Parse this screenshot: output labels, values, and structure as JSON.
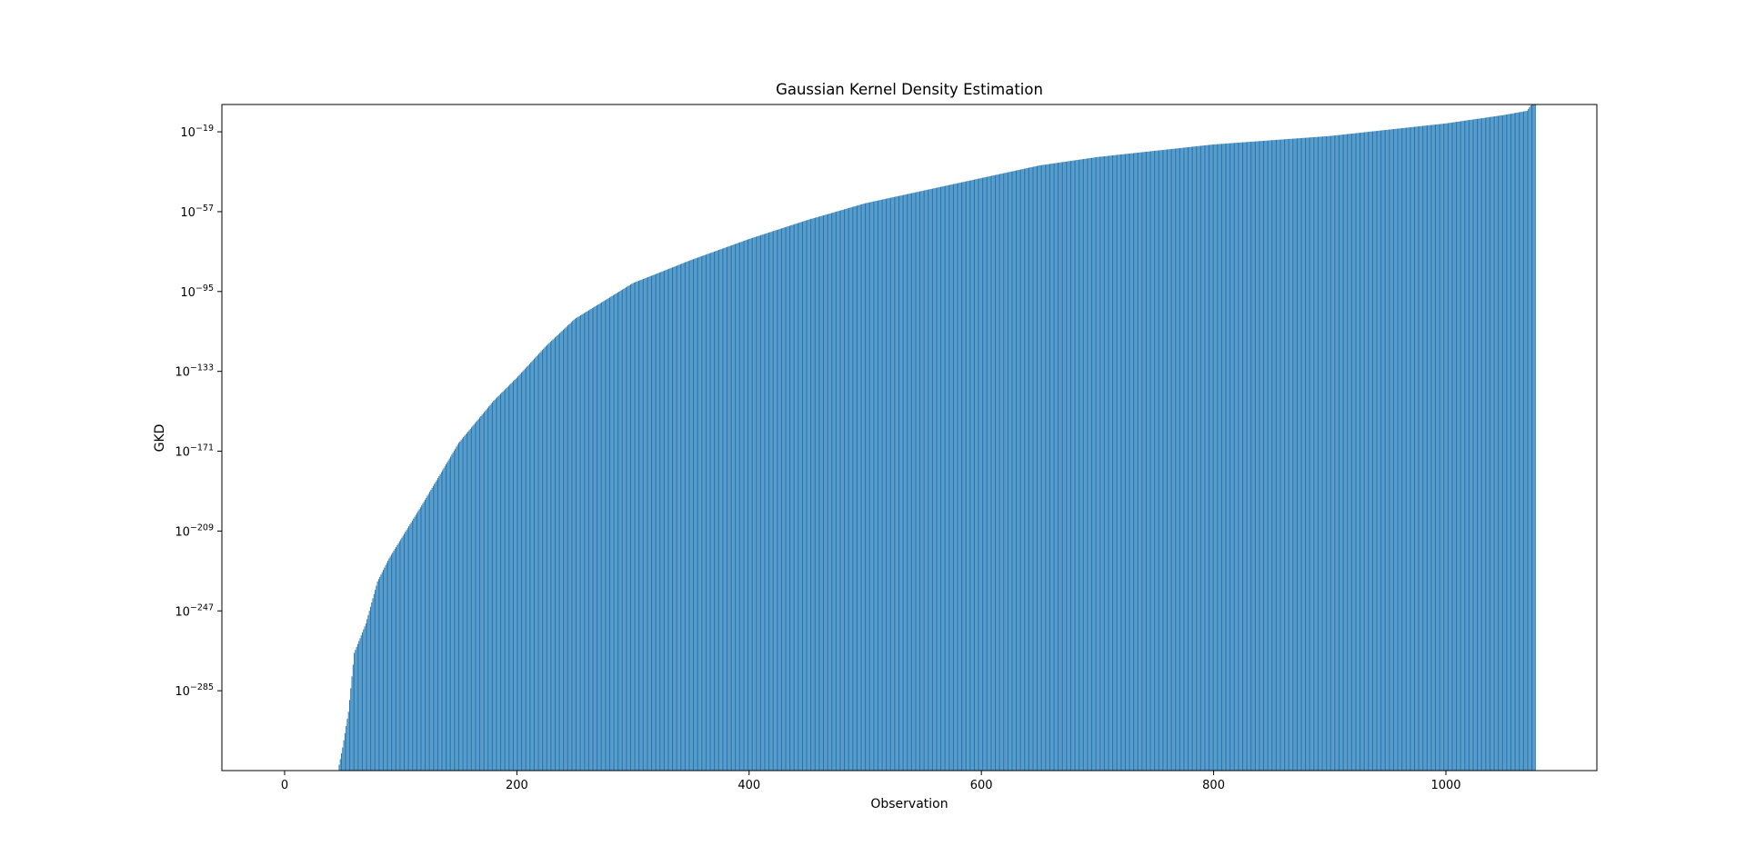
{
  "chart_data": {
    "type": "bar",
    "title": "Gaussian Kernel Density Estimation",
    "xlabel": "Observation",
    "ylabel": "GKD",
    "x_scale": "linear",
    "y_scale": "log",
    "xlim": [
      -54,
      1130
    ],
    "ylim_log10": [
      -323,
      -6
    ],
    "grid": false,
    "legend": "none",
    "bar_color": "#1f77b4",
    "x_ticks": [
      {
        "value": 0,
        "label": "0"
      },
      {
        "value": 200,
        "label": "200"
      },
      {
        "value": 400,
        "label": "400"
      },
      {
        "value": 600,
        "label": "600"
      },
      {
        "value": 800,
        "label": "800"
      },
      {
        "value": 1000,
        "label": "1000"
      }
    ],
    "y_ticks": [
      {
        "exponent": -19,
        "base": "10",
        "sup": "−19"
      },
      {
        "exponent": -57,
        "base": "10",
        "sup": "−57"
      },
      {
        "exponent": -95,
        "base": "10",
        "sup": "−95"
      },
      {
        "exponent": -133,
        "base": "10",
        "sup": "−133"
      },
      {
        "exponent": -171,
        "base": "10",
        "sup": "−171"
      },
      {
        "exponent": -209,
        "base": "10",
        "sup": "−209"
      },
      {
        "exponent": -247,
        "base": "10",
        "sup": "−247"
      },
      {
        "exponent": -285,
        "base": "10",
        "sup": "−285"
      }
    ],
    "series": [
      {
        "observation_range": [
          0,
          1077
        ],
        "values_note": "log10(GKD), sorted ascending; bars below 10^-323 are not visible",
        "log10_values_at": {
          "x": [
            0,
            46,
            50,
            55,
            60,
            70,
            80,
            90,
            100,
            120,
            150,
            180,
            200,
            225,
            250,
            300,
            350,
            400,
            450,
            500,
            550,
            600,
            650,
            700,
            750,
            800,
            850,
            900,
            950,
            1000,
            1050,
            1070,
            1077
          ],
          "log10_gkd": [
            -340,
            -323,
            -312,
            -295,
            -267,
            -253,
            -233,
            -222,
            -213,
            -195,
            -167,
            -147,
            -136,
            -121,
            -108,
            -91,
            -80,
            -70,
            -61,
            -53,
            -47,
            -41,
            -35,
            -31,
            -28,
            -25,
            -23,
            -21,
            -18,
            -15,
            -11,
            -9,
            -3
          ]
        }
      }
    ]
  }
}
